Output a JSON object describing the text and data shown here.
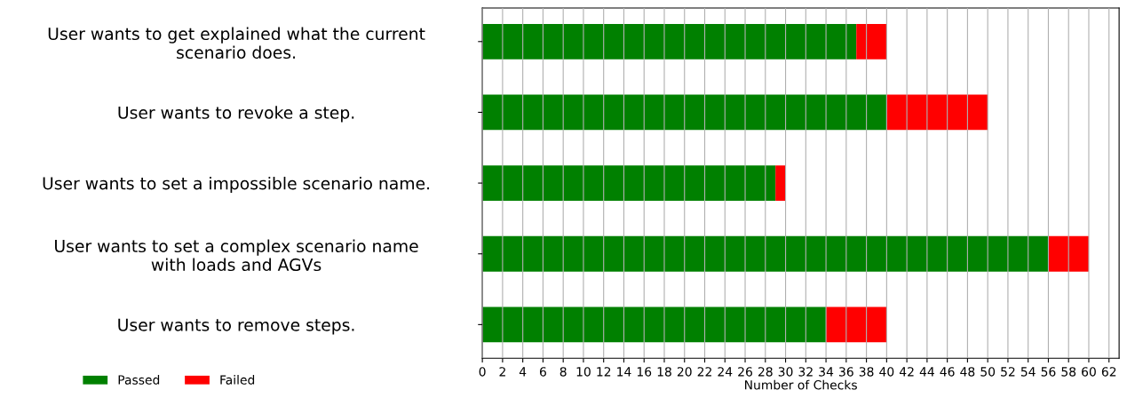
{
  "chart_data": {
    "type": "bar",
    "orientation": "horizontal",
    "stacked": true,
    "categories": [
      "User wants to get explained what the current\nscenario does.",
      "User wants to revoke a step.",
      "User wants to set a impossible scenario name.",
      "User wants to set a complex scenario name\nwith loads and AGVs",
      "User wants to remove steps."
    ],
    "series": [
      {
        "name": "Passed",
        "color": "#008000",
        "values": [
          37,
          40,
          29,
          56,
          34
        ]
      },
      {
        "name": "Failed",
        "color": "#ff0000",
        "values": [
          3,
          10,
          1,
          4,
          6
        ]
      }
    ],
    "xlabel": "Number of Checks",
    "xlim": [
      0,
      63
    ],
    "xticks": [
      0,
      2,
      4,
      6,
      8,
      10,
      12,
      14,
      16,
      18,
      20,
      22,
      24,
      26,
      28,
      30,
      32,
      34,
      36,
      38,
      40,
      42,
      44,
      46,
      48,
      50,
      52,
      54,
      56,
      58,
      60,
      62
    ],
    "grid": "x",
    "legend": "bottom left"
  }
}
